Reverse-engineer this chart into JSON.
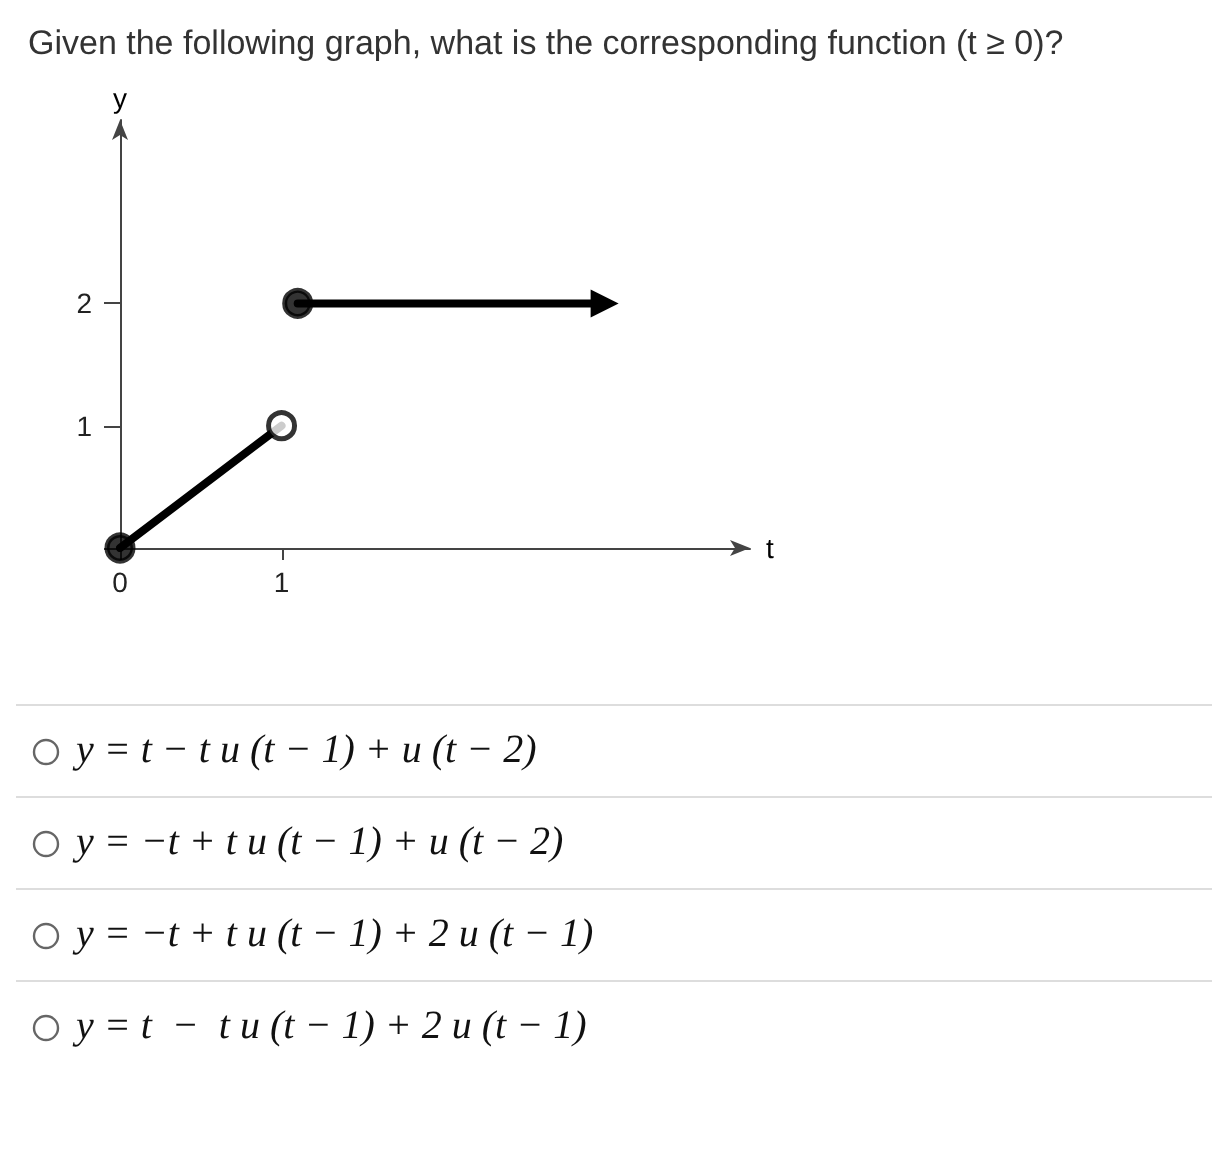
{
  "chart_data": {
    "type": "line",
    "title": "Given the following graph, what is the corresponding function (t ≥ 0)?",
    "xlabel": "t",
    "ylabel": "y",
    "xlim": [
      0,
      3.9
    ],
    "ylim": [
      0,
      3.5
    ],
    "xticks": [
      0,
      1
    ],
    "yticks": [
      {
        "value": 0,
        "label": null
      },
      1,
      2
    ],
    "series": [
      {
        "x": [
          0,
          1
        ],
        "values": [
          0,
          1
        ],
        "color": "#000000",
        "marker": "none"
      },
      {
        "x": [
          1.1,
          3
        ],
        "values": [
          2,
          2
        ],
        "color": "#000000",
        "marker": "triangle"
      },
      {
        "type": "scatter",
        "x": [
          0,
          1.1
        ],
        "values": [
          0,
          2
        ],
        "color": "#000000",
        "marker": "circle"
      },
      {
        "type": "scatter",
        "x": [
          1
        ],
        "values": [
          1
        ],
        "color": "#ffffff",
        "marker": "circle"
      }
    ],
    "annotations": [
      "y = t − t u (t − 1) + u (t − 2)",
      "y = −t + t u (t − 1) + u (t − 2)",
      "y = −t + t u (t − 1) + 2 u (t − 1)",
      "y = t  −  t u (t − 1) + 2 u (t − 1)"
    ]
  }
}
